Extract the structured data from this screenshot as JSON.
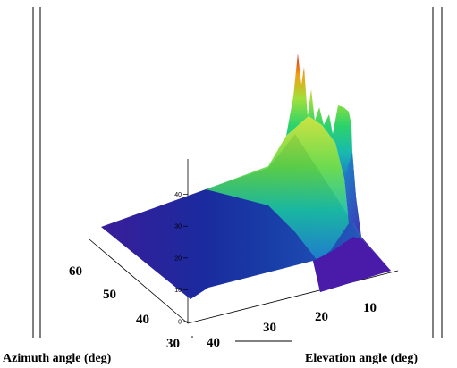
{
  "chart_data": {
    "type": "surface3d",
    "xlabel": "Elevation angle (deg)",
    "ylabel": "Azimuth angle (deg)",
    "zlabel": "",
    "x_ticks": [
      "40",
      "30",
      "20",
      "10"
    ],
    "y_ticks": [
      "30",
      "40",
      "50",
      "60"
    ],
    "z_ticks": [
      "0",
      "10",
      "20",
      "30",
      "40"
    ],
    "z_range": [
      0,
      45
    ],
    "grid": false,
    "colormap": [
      "#2b0f8a",
      "#1f3fb4",
      "#1f7fd0",
      "#19b9b0",
      "#2bd36a",
      "#9fe03a",
      "#f0d21e",
      "#f07a14",
      "#e01e10"
    ],
    "surface_profile": {
      "azimuth_samples": [
        30,
        40,
        50,
        60
      ],
      "elevation_samples": [
        40,
        35,
        30,
        25,
        20,
        15,
        10,
        5
      ],
      "values": [
        [
          2,
          3,
          4,
          7,
          14,
          32,
          30,
          0
        ],
        [
          4,
          6,
          8,
          12,
          20,
          40,
          44,
          8
        ],
        [
          5,
          8,
          12,
          18,
          28,
          45,
          42,
          10
        ],
        [
          4,
          7,
          10,
          14,
          22,
          36,
          30,
          6
        ]
      ]
    }
  }
}
